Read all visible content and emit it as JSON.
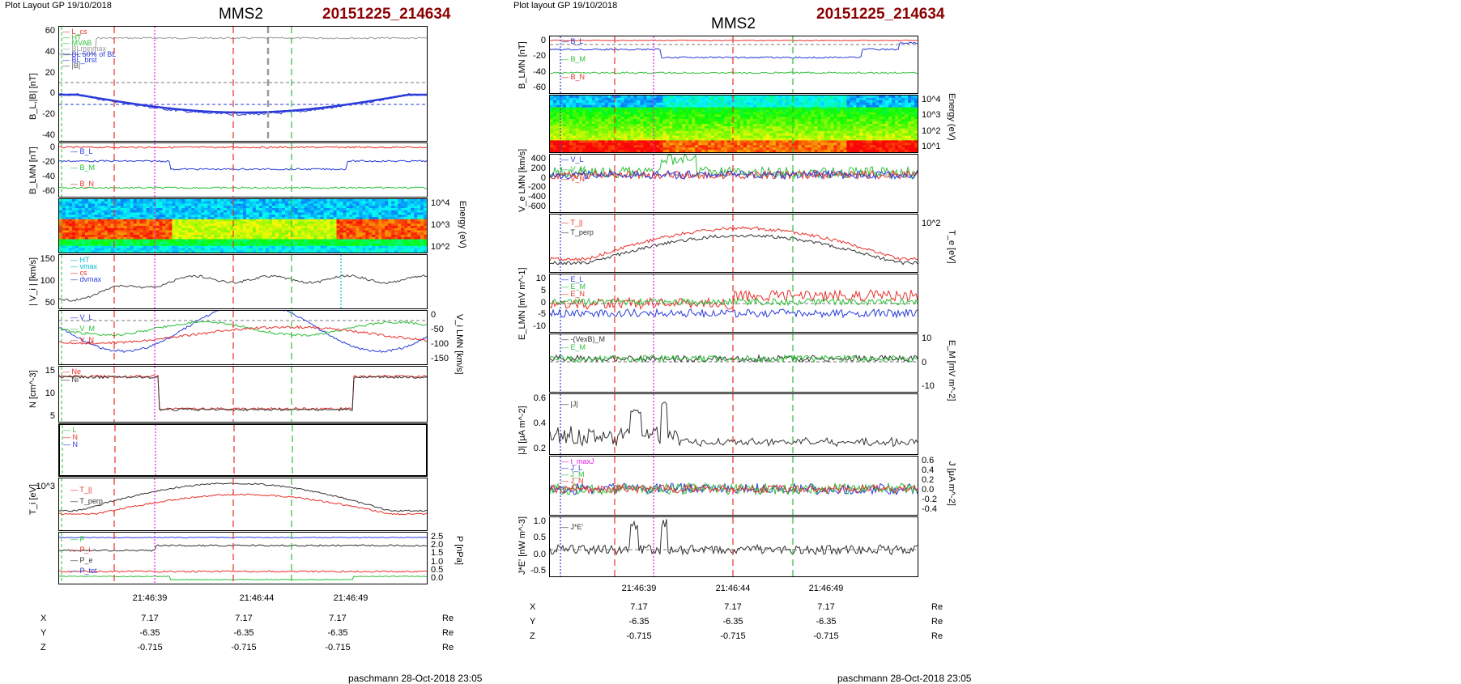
{
  "left": {
    "header": "Plot Layout GP 19/10/2018",
    "title": "MMS2",
    "event": "20151225_214634",
    "footer": "paschmann 28-Oct-2018 23:05",
    "time_ticks": [
      "21:46:39",
      "21:46:44",
      "21:46:49"
    ],
    "coords": {
      "rows": [
        {
          "name": "X",
          "values": [
            "7.17",
            "7.17",
            "7.17"
          ],
          "unit": "Re"
        },
        {
          "name": "Y",
          "values": [
            "-6.35",
            "-6.35",
            "-6.35"
          ],
          "unit": "Re"
        },
        {
          "name": "Z",
          "values": [
            "-0.715",
            "-0.715",
            "-0.715"
          ],
          "unit": "Re"
        }
      ]
    },
    "panels": {
      "bl": {
        "ylabel": "B_L,|B| [nT]",
        "ticks": [
          "60",
          "40",
          "20",
          "0",
          "-20",
          "-40"
        ],
        "legend": [
          "L_cs",
          "HT",
          "MVAB",
          "BLminmax",
          "BL 50% of BL",
          "BL_brst",
          "|B|"
        ]
      },
      "blmn": {
        "ylabel": "B_LMN [nT]",
        "ticks": [
          "0",
          "-20",
          "-40",
          "-60"
        ],
        "legend": [
          "B_L",
          "B_M",
          "B_N"
        ]
      },
      "ispec": {
        "ylabel": "Energy (eV)",
        "ticks": [
          "10^4",
          "10^3",
          "10^2"
        ]
      },
      "vi": {
        "ylabel": "| V_i | [km/s]",
        "ticks": [
          "150",
          "100",
          "50"
        ],
        "legend": [
          "HT",
          "vmax",
          "cs",
          "dvmax"
        ]
      },
      "vilmn": {
        "ylabel": "V_i LMN [km/s]",
        "ticks": [
          "0",
          "-50",
          "-100",
          "-150"
        ],
        "legend": [
          "V_L",
          "V_M",
          "V_N"
        ]
      },
      "n": {
        "ylabel": "N [cm^-3]",
        "ticks": [
          "15",
          "10",
          "5"
        ],
        "legend": [
          "Ne",
          "Ni"
        ]
      },
      "dir": {
        "legend": [
          "L",
          "N",
          "N"
        ]
      },
      "ti": {
        "ylabel": "T_i [eV]",
        "ticks": [
          "10^3"
        ],
        "legend": [
          "T_||",
          "T_perp"
        ]
      },
      "p": {
        "ylabel": "P [nPa]",
        "ticks": [
          "2.5",
          "2.0",
          "1.5",
          "1.0",
          "0.5",
          "0.0"
        ],
        "legend": [
          "P",
          "P_i",
          "P_e",
          "P_tot"
        ]
      }
    }
  },
  "right": {
    "header": "Plot layout GP 19/10/2018",
    "title": "MMS2",
    "event": "20151225_214634",
    "footer": "paschmann 28-Oct-2018 23:05",
    "time_ticks": [
      "21:46:39",
      "21:46:44",
      "21:46:49"
    ],
    "coords": {
      "rows": [
        {
          "name": "X",
          "values": [
            "7.17",
            "7.17",
            "7.17"
          ],
          "unit": "Re"
        },
        {
          "name": "Y",
          "values": [
            "-6.35",
            "-6.35",
            "-6.35"
          ],
          "unit": "Re"
        },
        {
          "name": "Z",
          "values": [
            "-0.715",
            "-0.715",
            "-0.715"
          ],
          "unit": "Re"
        }
      ]
    },
    "panels": {
      "blmn": {
        "ylabel": "B_LMN [nT]",
        "ticks": [
          "0",
          "-20",
          "-40",
          "-60"
        ],
        "legend": [
          "B_L",
          "B_M",
          "B_N"
        ]
      },
      "espec": {
        "ylabel": "Energy (eV)",
        "ticks": [
          "10^4",
          "10^3",
          "10^2",
          "10^1"
        ]
      },
      "ve": {
        "ylabel": "V_e LMN [km/s]",
        "ticks": [
          "400",
          "200",
          "0",
          "-200",
          "-400",
          "-600"
        ],
        "legend": [
          "V_L",
          "V_M",
          "V_N"
        ]
      },
      "te": {
        "ylabel": "T_e [eV]",
        "ticks": [
          "10^2"
        ],
        "legend": [
          "T_||",
          "T_perp"
        ]
      },
      "elmn": {
        "ylabel": "E_LMN [mV m^-1]",
        "ticks": [
          "10",
          "5",
          "0",
          "-5",
          "-10"
        ],
        "legend": [
          "E_L",
          "E_M",
          "E_N"
        ]
      },
      "em": {
        "ylabel": "E_M [mV m^-2]",
        "ticks": [
          "10",
          "0",
          "-10"
        ],
        "legend": [
          "-(VexB)_M",
          "E_M"
        ]
      },
      "j": {
        "ylabel": "|J| [μA m^-2]",
        "ticks": [
          "0.6",
          "0.4",
          "0.2"
        ],
        "legend": [
          "|J|"
        ]
      },
      "jlmn": {
        "ylabel": "J [μA m^-2]",
        "ticks": [
          "0.6",
          "0.4",
          "0.2",
          "0.0",
          "-0.2",
          "-0.4"
        ],
        "legend": [
          "t_maxJ",
          "J_L",
          "J_M",
          "J_N"
        ]
      },
      "je": {
        "ylabel": "J*E' [nW m^-3]",
        "ticks": [
          "1.0",
          "0.5",
          "0.0",
          "-0.5"
        ],
        "legend": [
          "J*E'"
        ]
      }
    }
  },
  "colors": {
    "red": "#e8302a",
    "green": "#2fbf3a",
    "blue": "#2a3bd9",
    "black": "#333333",
    "magenta": "#e020e0",
    "gray": "#999999",
    "title_red": "#8b0000"
  },
  "chart_data": [
    {
      "type": "line",
      "title": "MMS2",
      "panel": "left B_L,|B|",
      "ylim": [
        -50,
        75
      ]
    },
    {
      "type": "line",
      "title": "MMS2",
      "panel": "right B_LMN",
      "ylim": [
        -75,
        10
      ]
    }
  ]
}
